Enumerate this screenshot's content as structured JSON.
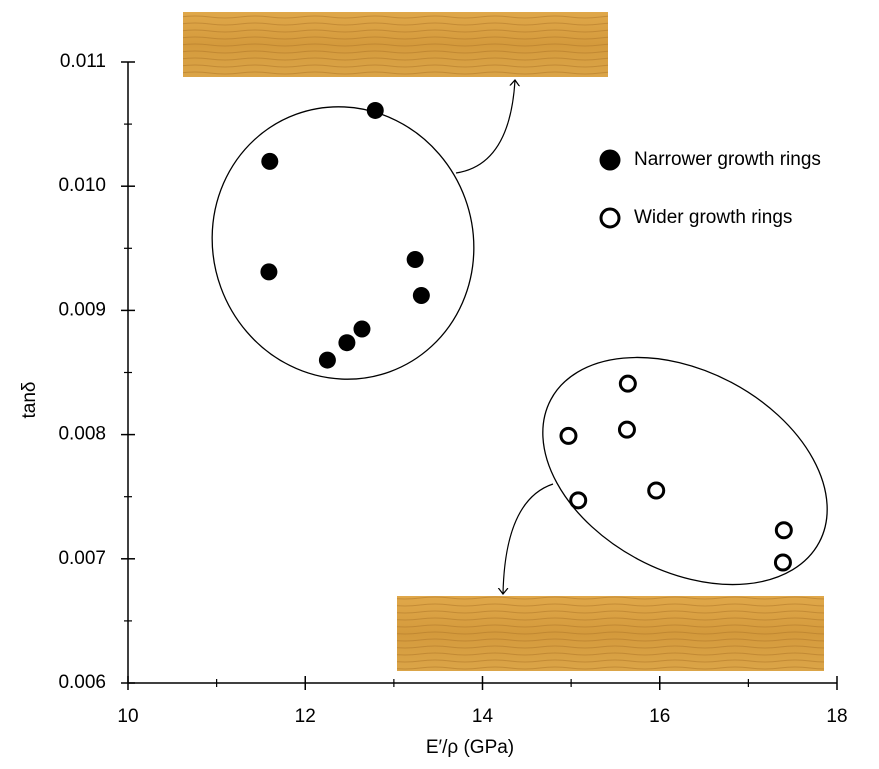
{
  "chart_data": {
    "type": "scatter",
    "x_label": "E′/ρ (GPa)",
    "y_label": "tanδ",
    "xlim": [
      10,
      18
    ],
    "xticks": [
      10,
      12,
      14,
      16,
      18
    ],
    "ylim": [
      0.006,
      0.011
    ],
    "yticks": [
      0.006,
      0.007,
      0.008,
      0.009,
      {
        "value": 0.01,
        "label": "0.010"
      },
      0.011
    ],
    "legend": "upper right",
    "series": [
      {
        "name": "Narrower growth rings",
        "color": "#000000",
        "marker": "filled",
        "x": [
          11.6,
          12.79,
          11.59,
          13.24,
          13.31,
          12.64,
          12.47,
          12.25
        ],
        "values": [
          0.0102,
          0.01061,
          0.00931,
          0.00941,
          0.00912,
          0.00885,
          0.00874,
          0.0086
        ]
      },
      {
        "name": "Wider growth rings",
        "color": "#000000",
        "marker": "open",
        "x": [
          14.97,
          15.08,
          15.64,
          15.63,
          15.96,
          17.4,
          17.39
        ],
        "values": [
          0.00799,
          0.00747,
          0.00841,
          0.00804,
          0.00755,
          0.00723,
          0.00697
        ]
      }
    ]
  }
}
